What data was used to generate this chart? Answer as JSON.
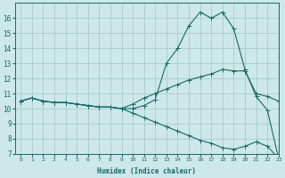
{
  "xlabel": "Humidex (Indice chaleur)",
  "background_color": "#cce8e8",
  "grid_color": "#aacccc",
  "line_color": "#1a6868",
  "x_values": [
    0,
    1,
    2,
    3,
    4,
    5,
    6,
    7,
    8,
    9,
    10,
    11,
    12,
    13,
    14,
    15,
    16,
    17,
    18,
    19,
    20,
    21,
    22,
    23
  ],
  "line1_y": [
    10.5,
    10.7,
    10.5,
    10.4,
    10.4,
    10.3,
    10.2,
    10.1,
    10.1,
    10.0,
    10.0,
    10.2,
    10.6,
    13.0,
    14.0,
    15.5,
    16.4,
    16.0,
    16.4,
    15.3,
    12.6,
    10.8,
    9.9,
    6.7
  ],
  "line2_y": [
    10.5,
    10.7,
    10.5,
    10.4,
    10.4,
    10.3,
    10.2,
    10.1,
    10.1,
    10.0,
    10.3,
    10.7,
    11.0,
    11.3,
    11.6,
    11.9,
    12.1,
    12.3,
    12.6,
    12.5,
    12.5,
    11.0,
    10.8,
    10.5
  ],
  "line3_y": [
    10.5,
    10.7,
    10.5,
    10.4,
    10.4,
    10.3,
    10.2,
    10.1,
    10.1,
    10.0,
    9.7,
    9.4,
    9.1,
    8.8,
    8.5,
    8.2,
    7.9,
    7.7,
    7.4,
    7.3,
    7.5,
    7.8,
    7.5,
    6.7
  ],
  "ylim": [
    7,
    17
  ],
  "xlim": [
    -0.5,
    23
  ],
  "yticks": [
    7,
    8,
    9,
    10,
    11,
    12,
    13,
    14,
    15,
    16
  ],
  "xticks": [
    0,
    1,
    2,
    3,
    4,
    5,
    6,
    7,
    8,
    9,
    10,
    11,
    12,
    13,
    14,
    15,
    16,
    17,
    18,
    19,
    20,
    21,
    22,
    23
  ]
}
